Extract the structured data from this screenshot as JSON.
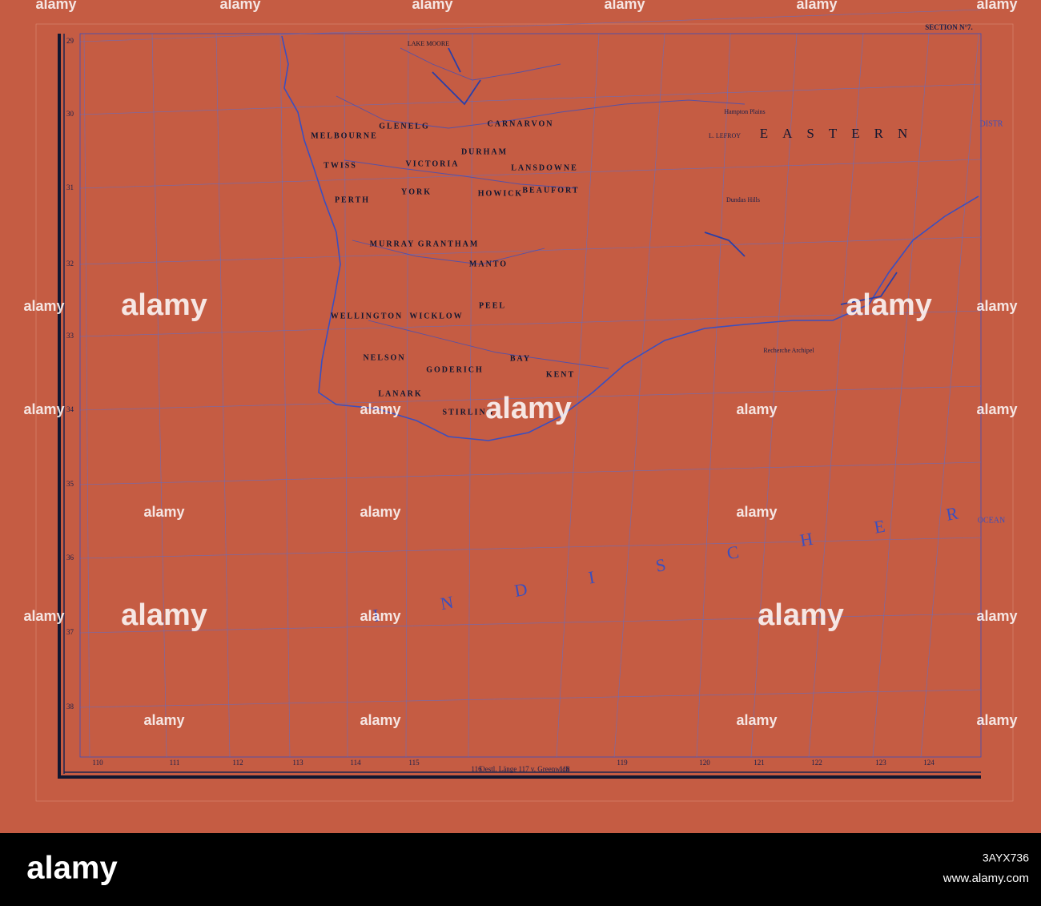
{
  "map": {
    "section": "SECTION N°7.",
    "eastern": "EASTERN",
    "distr": "DISTR",
    "ocean": "INDISCHER",
    "ocean_right": "OCEAN",
    "lake": "LAKE MOORE",
    "regions": [
      "MELBOURNE",
      "GLENELG",
      "CARNARVON",
      "TWISS",
      "VICTORIA",
      "DURHAM",
      "LANSDOWNE",
      "PERTH",
      "YORK",
      "HOWICK",
      "BEAUFORT",
      "MURRAY",
      "GRANTHAM",
      "MANTO",
      "WICKLOW",
      "PEEL",
      "WELLINGTON",
      "NELSON",
      "GODERICH",
      "BAY",
      "LANARK",
      "STIRLING",
      "KENT"
    ],
    "places": [
      "Hampton Plains",
      "Dundas Hills",
      "Recherche Archipel",
      "L. LEFROY"
    ],
    "latitudes": [
      29,
      30,
      31,
      32,
      33,
      34,
      35,
      36,
      37,
      38
    ],
    "longitudes": [
      110,
      111,
      112,
      113,
      114,
      115,
      116,
      118,
      119,
      120,
      121,
      122,
      123,
      124
    ],
    "longitude_caption": "Oestl. Länge 117 v. Greenwich"
  },
  "watermark": "alamy",
  "footer": {
    "logo": "alamy",
    "image_id": "3AYX736",
    "url": "www.alamy.com"
  }
}
